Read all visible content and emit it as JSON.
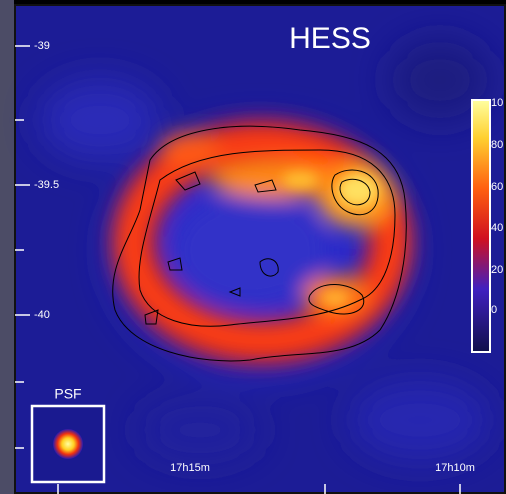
{
  "title": "HESS",
  "y_axis_labels": [
    "-39",
    "-39.5",
    "-40"
  ],
  "x_axis_labels": [
    "17h15m",
    "17h10m"
  ],
  "psf_label": "PSF",
  "colorbar_labels": [
    "10",
    "80",
    "60",
    "40",
    "20",
    "0"
  ]
}
